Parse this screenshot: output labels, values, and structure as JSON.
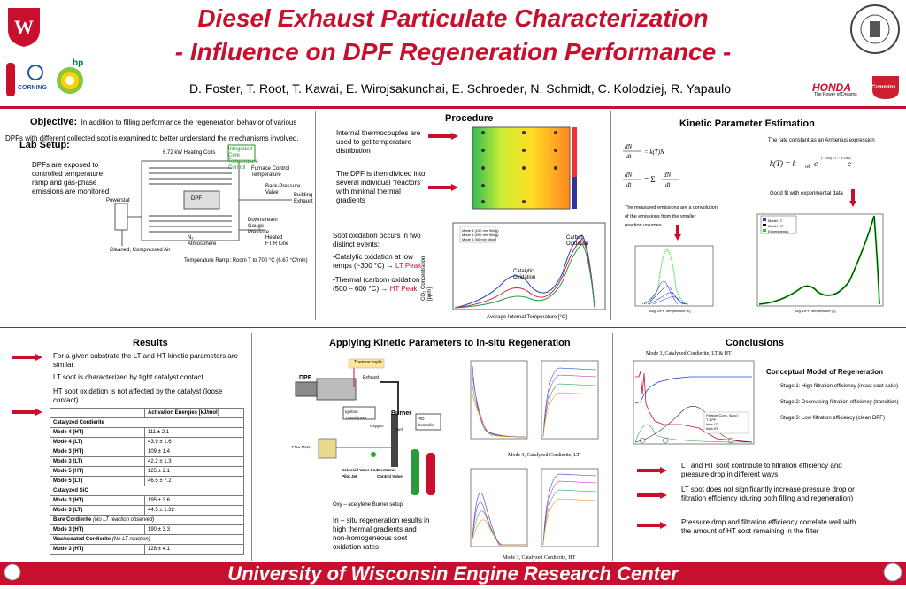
{
  "header": {
    "title_line1": "Diesel Exhaust Particulate Characterization",
    "title_line2": "- Influence on DPF Regeneration Performance -",
    "authors": "D. Foster, T. Root, T. Kawai, E. Wirojsakunchai, E. Schroeder, N. Schmidt, C. Kolodziej, R. Yapaulo",
    "logos": {
      "corning": "CORNING",
      "bp": "bp",
      "honda": "HONDA",
      "honda_tag": "The Power of Dreams",
      "cummins": "Cummins"
    }
  },
  "objective": {
    "label": "Objective:",
    "text": "In addition to filling performance the regeneration behavior of various DPFs with different collected soot is examined to better understand the mechanisms involved."
  },
  "lab_setup": {
    "label": "Lab Setup:",
    "text": "DPFs are exposed to controlled temperature ramp and gas-phase emissions are monitored",
    "diagram_labels": {
      "heating_coils": "6.72 kW Heating Coils",
      "temp_control": "Integrated Core Temperature Control",
      "furnace_temp": "Furnace Control Temperature",
      "back_pressure": "Back-Pressure Valve",
      "building_exhaust": "Building Exhaust",
      "dpf": "DPF",
      "powerstat": "Powerstat",
      "downstream": "Downstream Gauge Pressure",
      "n2": "N₂ Atmosphere",
      "heated_ftir": "Heated FTIR Line",
      "cleaned_air": "Cleaned, Compressed Air"
    },
    "ramp_caption": "Temperature Ramp: Room T to 700 °C (6.67 °C/min)"
  },
  "procedure": {
    "label": "Procedure",
    "text1": "Internal thermocouples are used to get temperature distribution",
    "text2": "The DPF is then divided into several individual “reactors” with minimal thermal gradients",
    "soot_intro": "Soot oxidation occurs in two distinct events:",
    "bullet1_prefix": "•Catalytic oxidation at low temps (~300 °C) → ",
    "bullet1_peak": "LT Peak",
    "bullet2_prefix": "•Thermal (carbon) oxidation (500 – 600 °C) → ",
    "bullet2_peak": "HT Peak",
    "chart_labels": {
      "catalytic": "Catalytic Oxidation",
      "carbon": "Carbon Oxidation",
      "xlabel": "Average Internal Temperature [°C]",
      "ylabel": "CO₂ Concentration [ppm]",
      "legend": [
        "Mode 4 (100 min filling)",
        "Mode 4 (200 min filling)",
        "Mode 4 (50 min filling)"
      ]
    }
  },
  "kinetic": {
    "label": "Kinetic Parameter Estimation",
    "arrhenius_text": "The rate constant as an Arrhenius expression",
    "fit_text": "Good fit with experimental data",
    "convolution_text1": "The measured emissions are a convolution",
    "convolution_text2": "of the emissions from the smaller",
    "convolution_text3": "reaction volumes",
    "legend": [
      "Model LT",
      "Model HT",
      "Experimental"
    ],
    "xlabel_small": "Avg. DPF Temperature [K]",
    "xlabel_big": "Avg. DPF Temperature [K]"
  },
  "results": {
    "label": "Results",
    "b1": "For a given substrate the LT and HT kinetic parameters are similar",
    "b2": "LT soot is characterized by tight catalyst contact",
    "b3": "HT soot oxidation is not affected by the catalyst (loose contact)",
    "table_header": "Activation Energies [kJ/mol]",
    "rows": [
      {
        "type": "group",
        "label": "Catalyzed Cordierite"
      },
      {
        "label": "Mode 4 (HT)",
        "value": "111  ± 2.1"
      },
      {
        "label": "Mode 4 (LT)",
        "value": "43.9  ± 1.6"
      },
      {
        "label": "Mode 3 (HT)",
        "value": "109  ± 1.4"
      },
      {
        "label": "Mode 3 (LT)",
        "value": "42.2  ± 1.3"
      },
      {
        "label": "Mode 5 (HT)",
        "value": "125  ± 2.1"
      },
      {
        "label": "Mode 5 (LT)",
        "value": "46.5  ± 7.2"
      },
      {
        "type": "group",
        "label": "Catalyzed SiC"
      },
      {
        "label": "Mode 3 (HT)",
        "value": "195  ± 3.6"
      },
      {
        "label": "Mode 3 (LT)",
        "value": "44.5  ± 1.32"
      },
      {
        "type": "group",
        "label": "Bare Cordierite",
        "note": "(No LT reaction observed)"
      },
      {
        "label": "Mode 3 (HT)",
        "value": "190  ± 3.3"
      },
      {
        "type": "group",
        "label": "Washcoated Cordierite",
        "note": "(No LT reaction)"
      },
      {
        "label": "Mode 3 (HT)",
        "value": "128  ± 4.1"
      }
    ]
  },
  "insitu": {
    "label": "Applying Kinetic Parameters to in-situ Regeneration",
    "thermocouple": "Thermocouple",
    "exhaust": "Exhaust",
    "dpf": "DPF",
    "burner": "Burner",
    "ignition": "Ignition Transformer",
    "oxygen": "Oxygen",
    "fuel": "Fuel",
    "pid": "PID Controller",
    "flowmeter": "Flow Meter",
    "solenoid": "Solenoid Valve For Pilot Jet",
    "electronic": "Electronic Control Valve",
    "oxy_caption": "Oxy – acetylene Burner setup",
    "text": "In – situ regeneration results in high thermal gradients and non-homogeneous soot oxidation rates",
    "cap_lt": "Mode 3, Catalyzed Cordierite, LT",
    "cap_ht": "Mode 3, Catalyzed Cordierite, HT"
  },
  "conclusions": {
    "label": "Conclusions",
    "chart_title": "Mode 3, Catalyzed Cordierite, LT & HT",
    "legend": [
      "Particle Conc. [#/cc]",
      "T DPF",
      "Infla LT",
      "Infla HT"
    ],
    "model_title": "Conceptual Model of Regeneration",
    "stage1": "Stage 1: High filtration efficiency (intact soot cake)",
    "stage2": "Stage 2: Decreasing filtration efficiency (transition)",
    "stage3": "Stage 3: Low filtration efficiency (clean DPF)",
    "c1": "LT and HT soot contribute to filtration efficiency and pressure drop in different ways",
    "c2": "LT soot does not significantly increase pressure drop or filtration efficiency (during both filling and regeneration)",
    "c3": "Pressure drop and filtration efficiency correlate well with the amount of HT soot remaining in the filter"
  },
  "footer": {
    "text": "University of Wisconsin Engine Research Center"
  },
  "colors": {
    "accent": "#c8102e"
  }
}
